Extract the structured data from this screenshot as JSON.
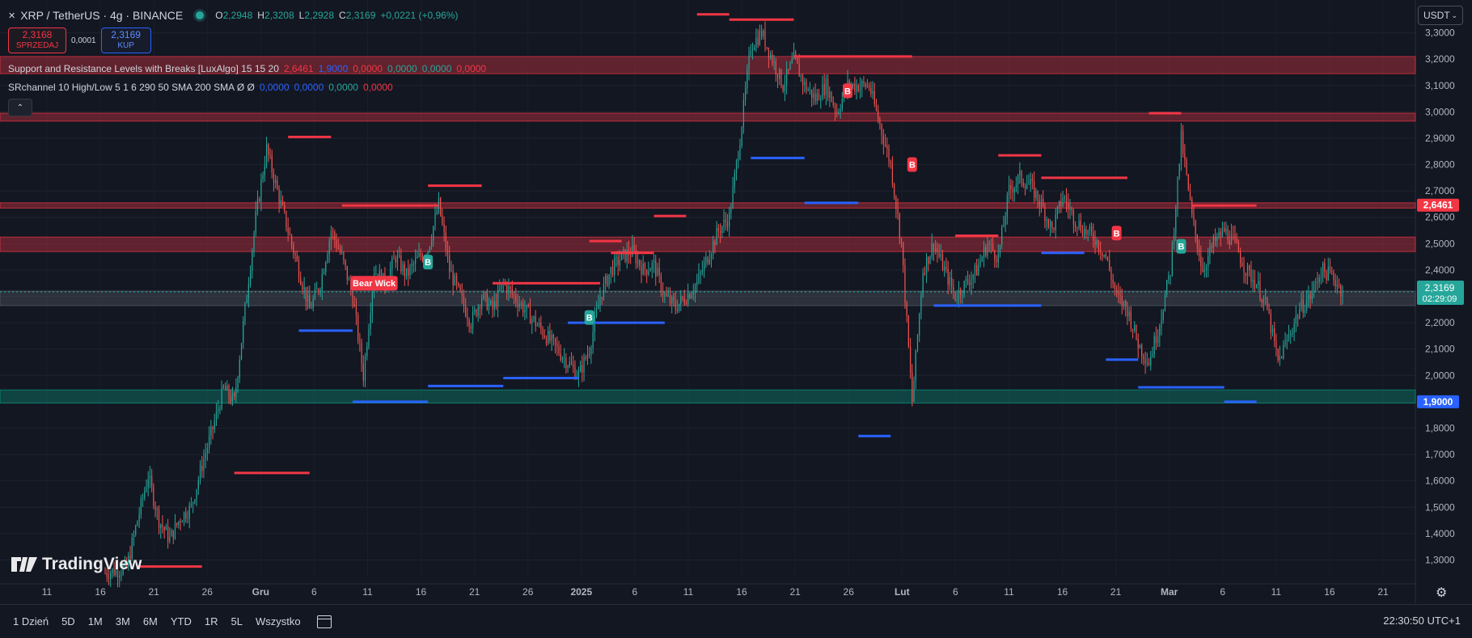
{
  "header": {
    "symbol": "XRP / TetherUS · 4g · BINANCE",
    "open_label": "O",
    "open": "2,2948",
    "high_label": "H",
    "high": "2,3208",
    "low_label": "L",
    "low": "2,2928",
    "close_label": "C",
    "close": "2,3169",
    "change": "+0,0221 (+0,96%)"
  },
  "trade": {
    "sell_price": "2,3168",
    "sell_label": "SPRZEDAJ",
    "spread": "0,0001",
    "buy_price": "2,3169",
    "buy_label": "KUP"
  },
  "indicators": [
    {
      "name": "Support and Resistance Levels with Breaks [LuxAlgo] 15 15 20",
      "values": [
        {
          "text": "2,6461",
          "color": "#f23645"
        },
        {
          "text": "1,9000",
          "color": "#2962ff"
        },
        {
          "text": "0,0000",
          "color": "#f23645"
        },
        {
          "text": "0,0000",
          "color": "#26a69a"
        },
        {
          "text": "0,0000",
          "color": "#26a69a"
        },
        {
          "text": "0,0000",
          "color": "#f23645"
        }
      ]
    },
    {
      "name": "SRchannel 10 High/Low 5 1 6 290 50 SMA 200 SMA  Ø  Ø",
      "values": [
        {
          "text": "0,0000",
          "color": "#2962ff"
        },
        {
          "text": "0,0000",
          "color": "#2962ff"
        },
        {
          "text": "0,0000",
          "color": "#26a69a"
        },
        {
          "text": "0,0000",
          "color": "#f23645"
        }
      ]
    }
  ],
  "currency": "USDT",
  "logo_text": "TradingView",
  "ranges": [
    "1 Dzień",
    "5D",
    "1M",
    "3M",
    "6M",
    "YTD",
    "1R",
    "5L",
    "Wszystko"
  ],
  "clock": "22:30:50 UTC+1",
  "colors": {
    "up": "#26a69a",
    "down": "#ef5350",
    "resistance": "#f23645",
    "support": "#2962ff",
    "zone_red": "#f23645",
    "zone_green": "#089981"
  },
  "chart_data": {
    "type": "candlestick",
    "ylim": [
      1.24,
      3.4
    ],
    "y_ticks": [
      "3,3000",
      "3,2000",
      "3,1000",
      "3,0000",
      "2,9000",
      "2,8000",
      "2,7000",
      "2,6000",
      "2,5000",
      "2,4000",
      "2,3000",
      "2,2000",
      "2,1000",
      "2,0000",
      "1,9000",
      "1,8000",
      "1,7000",
      "1,6000",
      "1,5000",
      "1,4000",
      "1,3000"
    ],
    "x_ticks": [
      "11",
      "16",
      "21",
      "26",
      "Gru",
      "6",
      "11",
      "16",
      "21",
      "26",
      "2025",
      "6",
      "11",
      "16",
      "21",
      "26",
      "Lut",
      "6",
      "11",
      "16",
      "21",
      "Mar",
      "6",
      "11",
      "16",
      "21"
    ],
    "last_price": "2,3169",
    "countdown": "02:29:09",
    "level_labels": [
      {
        "text": "2,6461",
        "value": 2.6461,
        "color": "#f23645"
      },
      {
        "text": "1,9000",
        "value": 1.9,
        "color": "#2962ff"
      }
    ],
    "price_path": [
      [
        0,
        1.25
      ],
      [
        2,
        1.27
      ],
      [
        3,
        1.45
      ],
      [
        4,
        1.62
      ],
      [
        5,
        1.45
      ],
      [
        6,
        1.38
      ],
      [
        7,
        1.46
      ],
      [
        8,
        1.5
      ],
      [
        9,
        1.66
      ],
      [
        10,
        1.8
      ],
      [
        11,
        1.95
      ],
      [
        12,
        1.9
      ],
      [
        13,
        2.25
      ],
      [
        14,
        2.6
      ],
      [
        15,
        2.86
      ],
      [
        16,
        2.7
      ],
      [
        17,
        2.55
      ],
      [
        18,
        2.4
      ],
      [
        19,
        2.25
      ],
      [
        20,
        2.35
      ],
      [
        21,
        2.55
      ],
      [
        22,
        2.45
      ],
      [
        23,
        2.3
      ],
      [
        24,
        2.0
      ],
      [
        25,
        2.4
      ],
      [
        26,
        2.35
      ],
      [
        27,
        2.45
      ],
      [
        28,
        2.38
      ],
      [
        29,
        2.44
      ],
      [
        30,
        2.48
      ],
      [
        31,
        2.65
      ],
      [
        32,
        2.4
      ],
      [
        33,
        2.3
      ],
      [
        34,
        2.2
      ],
      [
        35,
        2.3
      ],
      [
        36,
        2.25
      ],
      [
        37,
        2.35
      ],
      [
        38,
        2.3
      ],
      [
        39,
        2.25
      ],
      [
        40,
        2.2
      ],
      [
        41,
        2.15
      ],
      [
        42,
        2.1
      ],
      [
        43,
        2.05
      ],
      [
        44,
        2.0
      ],
      [
        45,
        2.1
      ],
      [
        46,
        2.3
      ],
      [
        47,
        2.4
      ],
      [
        48,
        2.45
      ],
      [
        49,
        2.47
      ],
      [
        50,
        2.4
      ],
      [
        51,
        2.42
      ],
      [
        52,
        2.3
      ],
      [
        53,
        2.26
      ],
      [
        54,
        2.3
      ],
      [
        55,
        2.35
      ],
      [
        56,
        2.45
      ],
      [
        57,
        2.55
      ],
      [
        58,
        2.6
      ],
      [
        59,
        2.9
      ],
      [
        60,
        3.25
      ],
      [
        61,
        3.3
      ],
      [
        62,
        3.2
      ],
      [
        63,
        3.1
      ],
      [
        64,
        3.2
      ],
      [
        65,
        3.1
      ],
      [
        66,
        3.05
      ],
      [
        67,
        3.1
      ],
      [
        68,
        3.0
      ],
      [
        69,
        3.1
      ],
      [
        70,
        3.1
      ],
      [
        71,
        3.1
      ],
      [
        72,
        2.95
      ],
      [
        73,
        2.8
      ],
      [
        74,
        2.5
      ],
      [
        75,
        1.9
      ],
      [
        76,
        2.4
      ],
      [
        77,
        2.5
      ],
      [
        78,
        2.4
      ],
      [
        79,
        2.3
      ],
      [
        80,
        2.35
      ],
      [
        81,
        2.4
      ],
      [
        82,
        2.5
      ],
      [
        83,
        2.45
      ],
      [
        84,
        2.7
      ],
      [
        85,
        2.75
      ],
      [
        86,
        2.72
      ],
      [
        87,
        2.65
      ],
      [
        88,
        2.55
      ],
      [
        89,
        2.68
      ],
      [
        90,
        2.6
      ],
      [
        91,
        2.55
      ],
      [
        92,
        2.52
      ],
      [
        93,
        2.45
      ],
      [
        94,
        2.3
      ],
      [
        95,
        2.25
      ],
      [
        96,
        2.12
      ],
      [
        97,
        2.05
      ],
      [
        98,
        2.2
      ],
      [
        99,
        2.4
      ],
      [
        100,
        2.9
      ],
      [
        101,
        2.6
      ],
      [
        102,
        2.4
      ],
      [
        103,
        2.5
      ],
      [
        104,
        2.55
      ],
      [
        105,
        2.5
      ],
      [
        106,
        2.4
      ],
      [
        107,
        2.35
      ],
      [
        108,
        2.25
      ],
      [
        109,
        2.05
      ],
      [
        110,
        2.15
      ],
      [
        111,
        2.25
      ],
      [
        112,
        2.3
      ],
      [
        113,
        2.4
      ],
      [
        114,
        2.38
      ],
      [
        115,
        2.32
      ]
    ],
    "zones": [
      {
        "from": 3.145,
        "to": 3.21,
        "color": "#f23645"
      },
      {
        "from": 2.965,
        "to": 2.995,
        "color": "#f23645"
      },
      {
        "from": 2.635,
        "to": 2.655,
        "color": "#f23645"
      },
      {
        "from": 2.47,
        "to": 2.525,
        "color": "#f23645"
      },
      {
        "from": 2.265,
        "to": 2.32,
        "color": "#5d606b"
      },
      {
        "from": 1.895,
        "to": 1.945,
        "color": "#089981"
      }
    ],
    "resistance_segments": [
      [
        3,
        9,
        1.275
      ],
      [
        12,
        19,
        1.63
      ],
      [
        17,
        21,
        2.905
      ],
      [
        22,
        31,
        2.645
      ],
      [
        30,
        35,
        2.72
      ],
      [
        36,
        46,
        2.35
      ],
      [
        45,
        48,
        2.51
      ],
      [
        47,
        51,
        2.465
      ],
      [
        51,
        54,
        2.605
      ],
      [
        55,
        58,
        3.37
      ],
      [
        58,
        64,
        3.35
      ],
      [
        64,
        75,
        3.21
      ],
      [
        79,
        83,
        2.53
      ],
      [
        83,
        87,
        2.835
      ],
      [
        87,
        95,
        2.75
      ],
      [
        97,
        100,
        2.995
      ],
      [
        101,
        107,
        2.645
      ]
    ],
    "support_segments": [
      [
        18,
        23,
        2.17
      ],
      [
        23,
        30,
        1.9
      ],
      [
        30,
        37,
        1.96
      ],
      [
        37,
        44,
        1.99
      ],
      [
        43,
        52,
        2.2
      ],
      [
        60,
        65,
        2.825
      ],
      [
        65,
        70,
        2.655
      ],
      [
        70,
        73,
        1.77
      ],
      [
        77,
        87,
        2.265
      ],
      [
        87,
        91,
        2.465
      ],
      [
        93,
        96,
        2.06
      ],
      [
        96,
        104,
        1.955
      ],
      [
        104,
        107,
        1.9
      ]
    ],
    "signals": [
      {
        "text": "Bear Wick",
        "i": 25,
        "y": 2.35,
        "color": "#f23645"
      },
      {
        "text": "B",
        "i": 30,
        "y": 2.43,
        "color": "#26a69a"
      },
      {
        "text": "B",
        "i": 45,
        "y": 2.22,
        "color": "#26a69a"
      },
      {
        "text": "B",
        "i": 69,
        "y": 3.08,
        "color": "#f23645"
      },
      {
        "text": "B",
        "i": 75,
        "y": 2.8,
        "color": "#f23645"
      },
      {
        "text": "B",
        "i": 94,
        "y": 2.54,
        "color": "#f23645"
      },
      {
        "text": "B",
        "i": 100,
        "y": 2.49,
        "color": "#26a69a"
      }
    ]
  }
}
